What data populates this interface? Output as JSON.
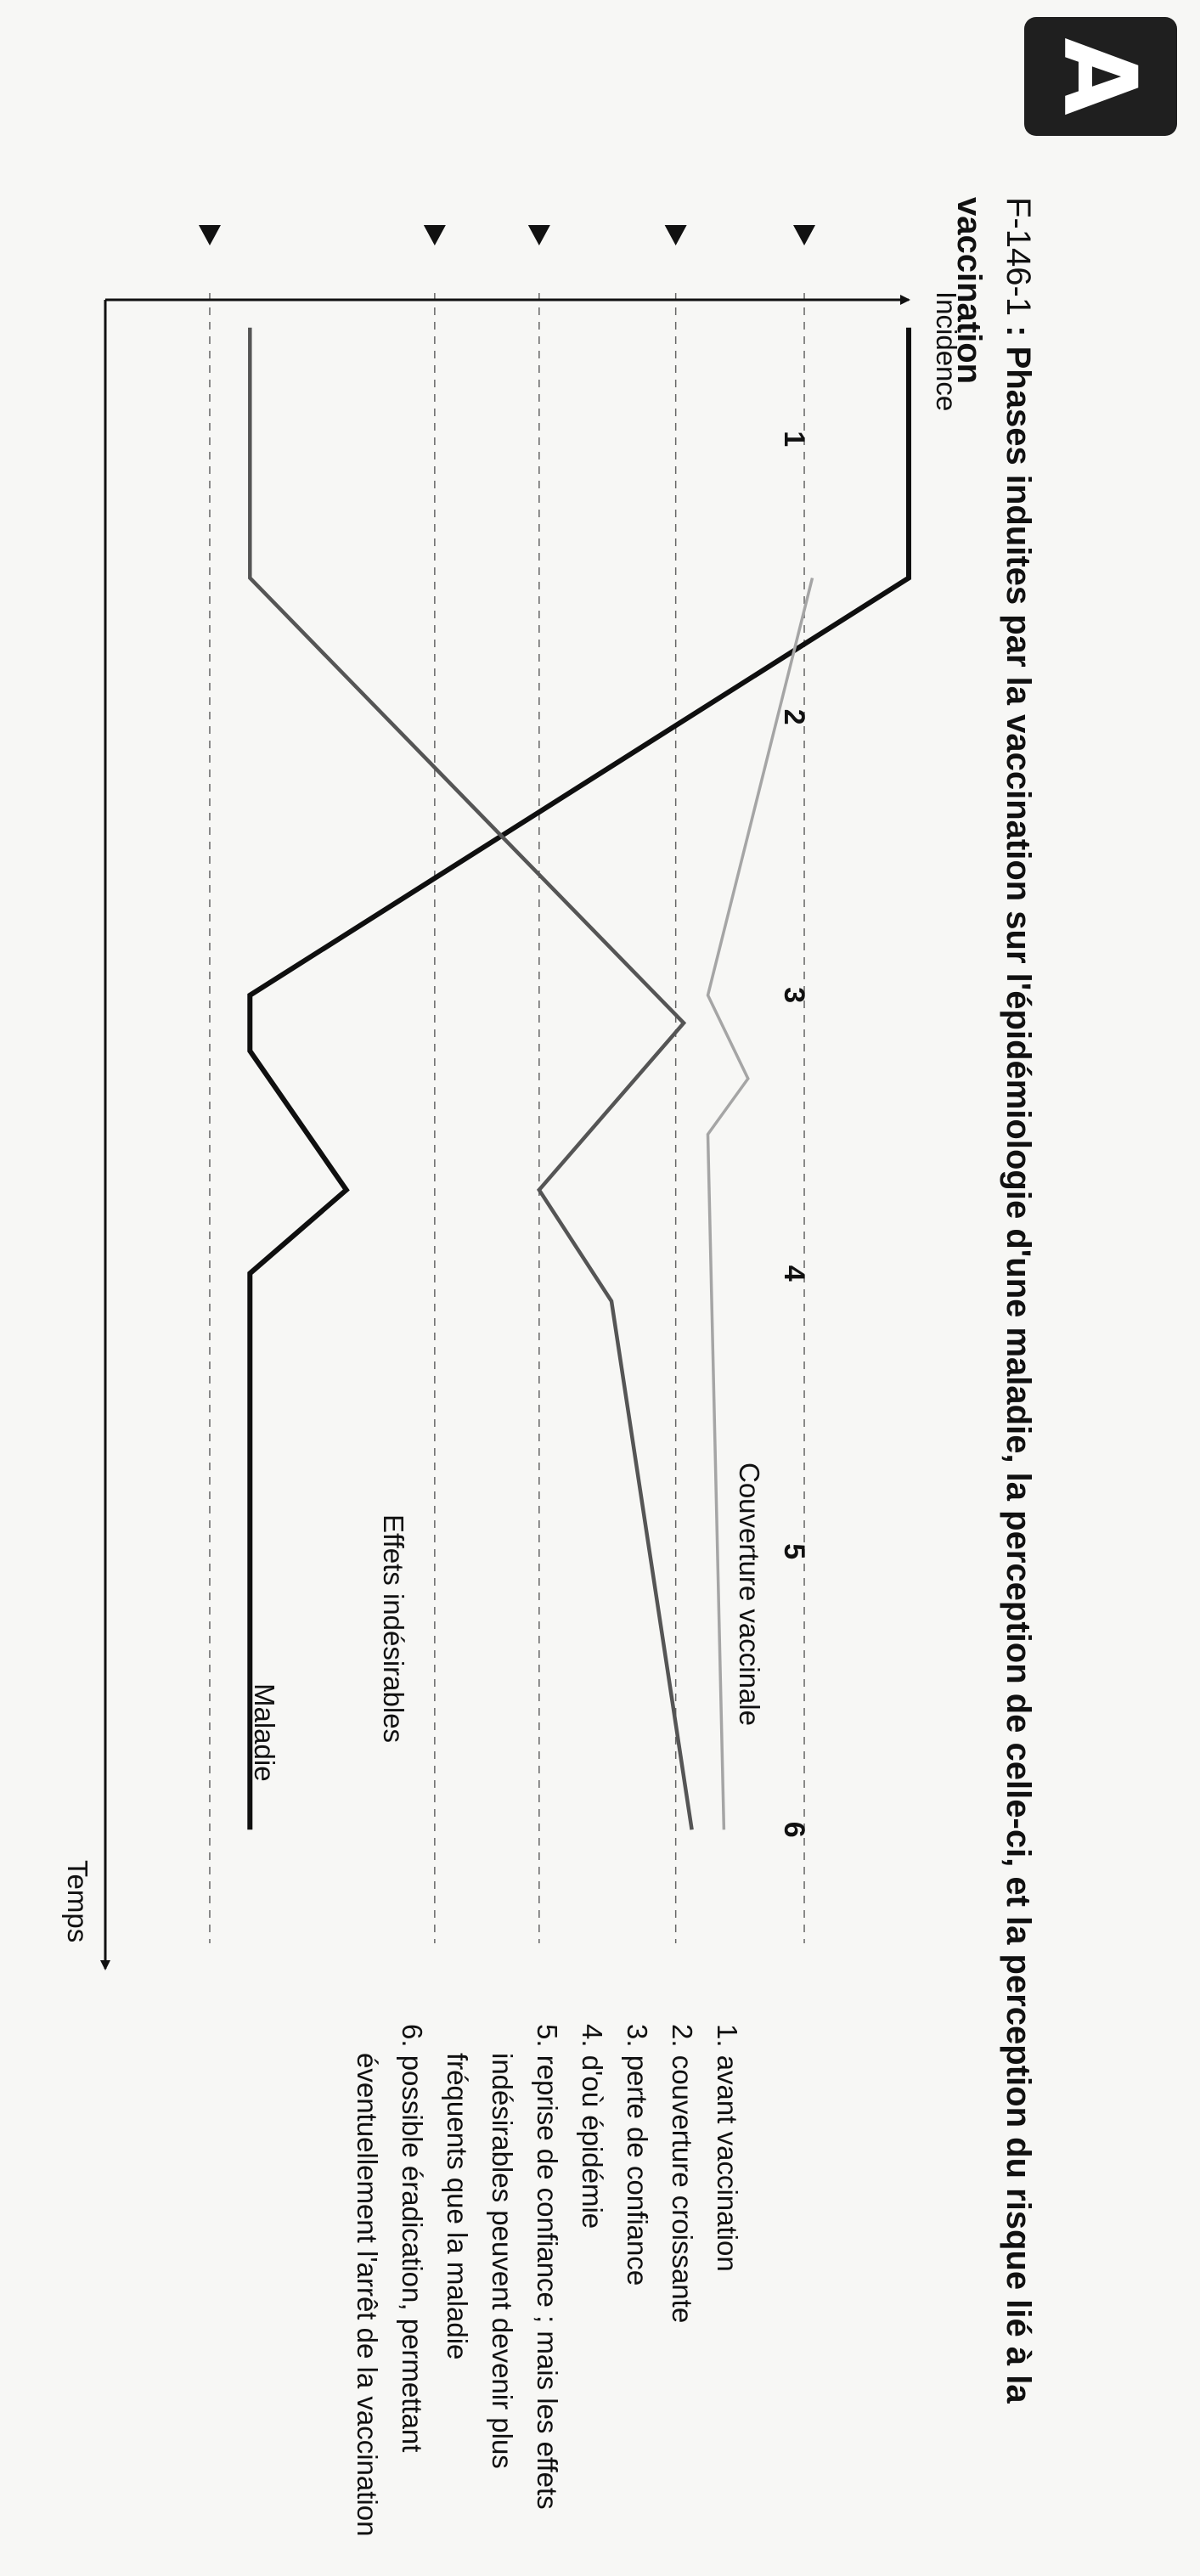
{
  "badge_letter": "A",
  "figure": {
    "id": "F-146-1",
    "separator": " : ",
    "title": "Phases induites par la vaccination sur l'épidémiologie d'une maladie, la perception de celle-ci, et la perception du risque lié à la vaccination"
  },
  "legend": [
    "1. avant vaccination",
    "2. couverture croissante",
    "3. perte de confiance",
    "4. d'où épidémie",
    "5. reprise de confiance ; mais les effets indésirables peuvent devenir plus fréquents que la maladie",
    "6. possible éradication, permettant éventuellement l'arrêt de la vaccination"
  ],
  "chart_data": {
    "type": "line",
    "title": "",
    "xlabel": "Temps",
    "ylabel": "Incidence",
    "x_ticks": [
      "1",
      "2",
      "3",
      "4",
      "5",
      "6"
    ],
    "xlim": [
      0.5,
      6.5
    ],
    "ylim": [
      0,
      100
    ],
    "grid_levels": [
      13,
      41,
      54,
      71,
      87
    ],
    "grid": "dashed horizontal guide lines",
    "series": [
      {
        "name": "Couverture vaccinale",
        "color": "#0f0f0f",
        "x": [
          0.6,
          1.5,
          3.0,
          3.2,
          3.7,
          4.0,
          4.5,
          6.0
        ],
        "y": [
          100,
          100,
          18,
          18,
          30,
          18,
          18,
          18
        ]
      },
      {
        "name": "Maladie",
        "color": "#555555",
        "x": [
          0.6,
          1.5,
          3.1,
          3.7,
          4.1,
          6.0
        ],
        "y": [
          18,
          18,
          72,
          54,
          63,
          73
        ]
      },
      {
        "name": "Effets indésirables",
        "color": "#a5a5a5",
        "x": [
          1.5,
          3.0,
          3.3,
          3.5,
          6.0
        ],
        "y": [
          88,
          75,
          80,
          75,
          77
        ]
      }
    ]
  }
}
